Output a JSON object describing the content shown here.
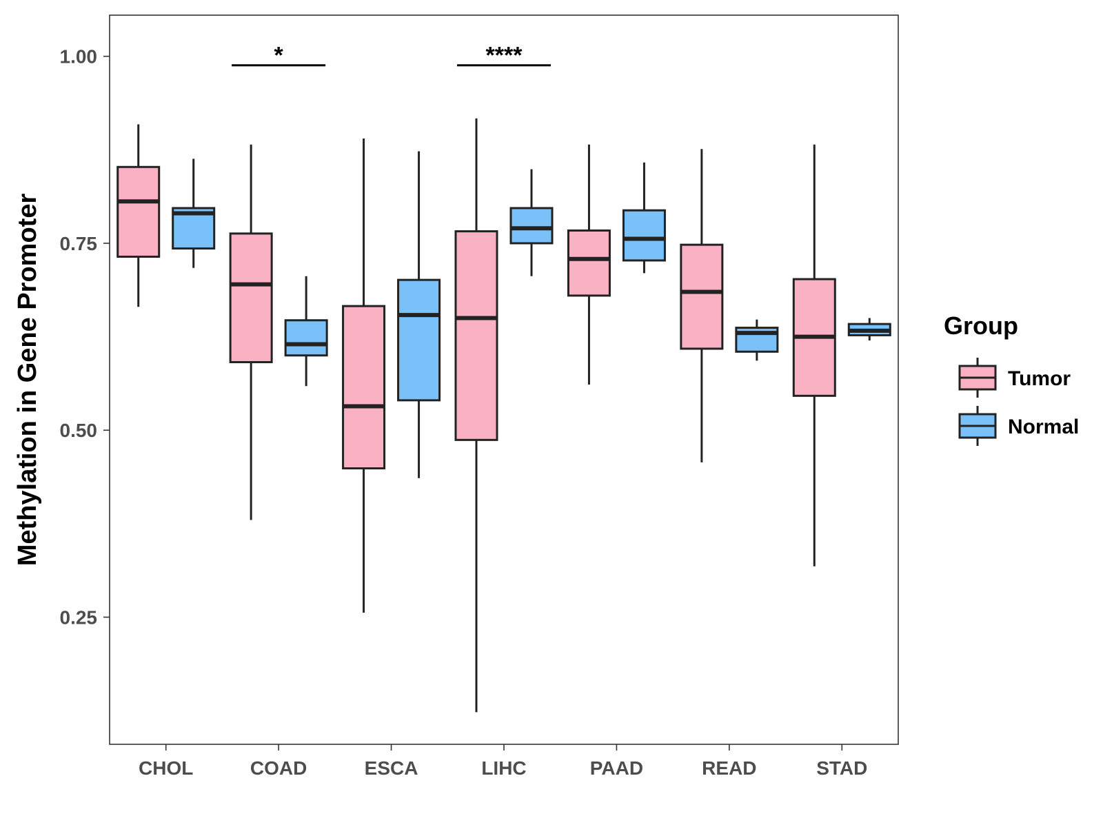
{
  "chart_data": {
    "type": "boxplot",
    "title": "",
    "xlabel": "",
    "ylabel": "Methylation in Gene Promoter",
    "ylim": [
      0.08,
      1.055
    ],
    "yticks": [
      "0.25",
      "0.50",
      "0.75",
      "1.00"
    ],
    "ytick_values": [
      0.25,
      0.5,
      0.75,
      1.0
    ],
    "grid": false,
    "categories": [
      "CHOL",
      "COAD",
      "ESCA",
      "LIHC",
      "PAAD",
      "READ",
      "STAD"
    ],
    "legend": {
      "title": "Group",
      "position": "right",
      "entries": [
        "Tumor",
        "Normal"
      ]
    },
    "series": [
      {
        "name": "Tumor",
        "color": "#fbb1c4",
        "boxes": [
          {
            "min": 0.665,
            "q1": 0.732,
            "median": 0.806,
            "q3": 0.852,
            "max": 0.909
          },
          {
            "min": 0.38,
            "q1": 0.591,
            "median": 0.695,
            "q3": 0.763,
            "max": 0.882
          },
          {
            "min": 0.256,
            "q1": 0.449,
            "median": 0.532,
            "q3": 0.666,
            "max": 0.89
          },
          {
            "min": 0.123,
            "q1": 0.487,
            "median": 0.65,
            "q3": 0.766,
            "max": 0.917
          },
          {
            "min": 0.561,
            "q1": 0.68,
            "median": 0.729,
            "q3": 0.767,
            "max": 0.882
          },
          {
            "min": 0.457,
            "q1": 0.609,
            "median": 0.685,
            "q3": 0.748,
            "max": 0.876
          },
          {
            "min": 0.318,
            "q1": 0.546,
            "median": 0.625,
            "q3": 0.702,
            "max": 0.882
          }
        ]
      },
      {
        "name": "Normal",
        "color": "#79c1f8",
        "boxes": [
          {
            "min": 0.717,
            "q1": 0.743,
            "median": 0.79,
            "q3": 0.797,
            "max": 0.863
          },
          {
            "min": 0.559,
            "q1": 0.6,
            "median": 0.615,
            "q3": 0.647,
            "max": 0.706
          },
          {
            "min": 0.436,
            "q1": 0.54,
            "median": 0.654,
            "q3": 0.701,
            "max": 0.873
          },
          {
            "min": 0.706,
            "q1": 0.75,
            "median": 0.77,
            "q3": 0.797,
            "max": 0.849
          },
          {
            "min": 0.71,
            "q1": 0.727,
            "median": 0.756,
            "q3": 0.794,
            "max": 0.858
          },
          {
            "min": 0.593,
            "q1": 0.605,
            "median": 0.63,
            "q3": 0.637,
            "max": 0.648
          },
          {
            "min": 0.62,
            "q1": 0.627,
            "median": 0.633,
            "q3": 0.642,
            "max": 0.65
          }
        ]
      }
    ],
    "annotations": [
      {
        "category": "COAD",
        "label": "*",
        "y": 0.988
      },
      {
        "category": "LIHC",
        "label": "****",
        "y": 0.988
      }
    ]
  }
}
